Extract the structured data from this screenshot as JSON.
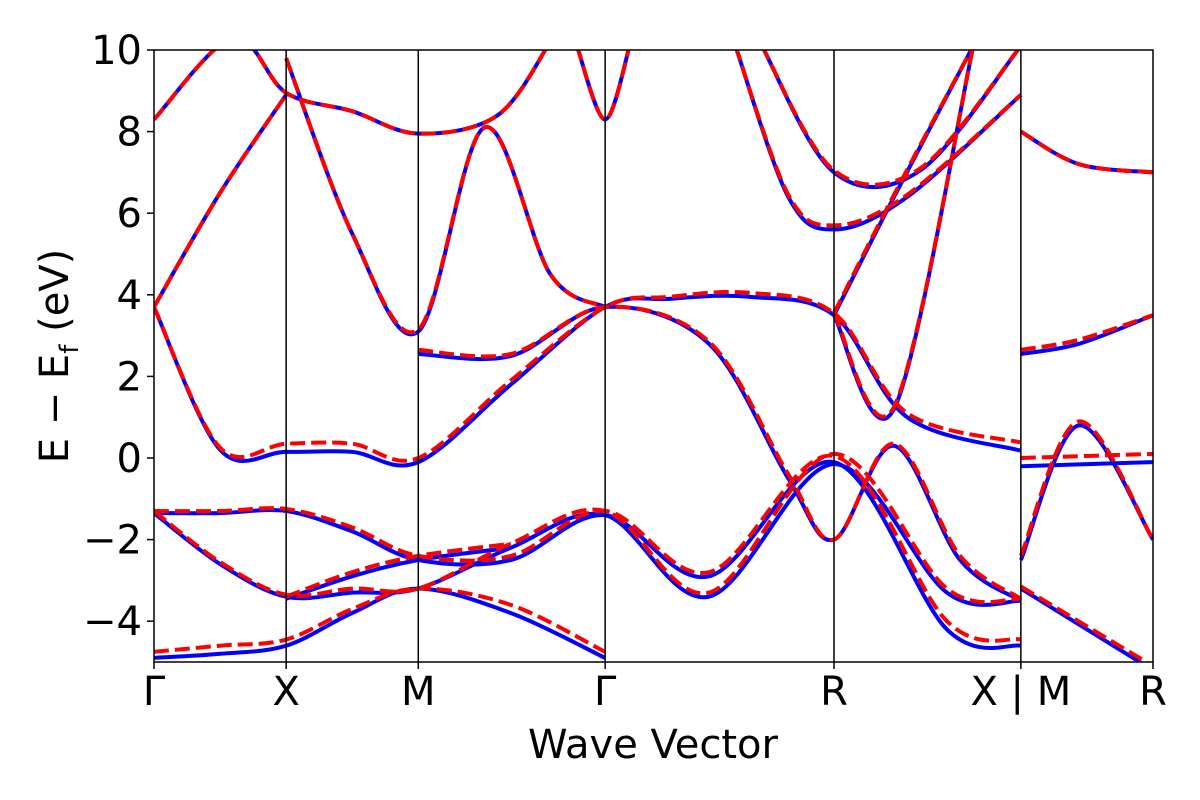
{
  "chart_data": {
    "type": "line",
    "title": "",
    "xlabel": "Wave Vector",
    "ylabel_parts": [
      "E − E",
      "f",
      " (eV)"
    ],
    "ylim": [
      -5,
      10
    ],
    "yticks": [
      {
        "value": -4,
        "label": "−4"
      },
      {
        "value": -2,
        "label": "−2"
      },
      {
        "value": 0,
        "label": "0"
      },
      {
        "value": 2,
        "label": "2"
      },
      {
        "value": 4,
        "label": "4"
      },
      {
        "value": 6,
        "label": "6"
      },
      {
        "value": 8,
        "label": "8"
      },
      {
        "value": 10,
        "label": "10"
      }
    ],
    "kpoints": [
      {
        "label": "Γ",
        "x": 0
      },
      {
        "label": "X",
        "x": 1
      },
      {
        "label": "M",
        "x": 2
      },
      {
        "label": "Γ",
        "x": 3.414
      },
      {
        "label": "R",
        "x": 5.146
      },
      {
        "label": "X | M",
        "x": 6.56
      },
      {
        "label": "R",
        "x": 7.56
      }
    ],
    "xlim": [
      0,
      7.56
    ],
    "grid": false,
    "legend": "none",
    "series": [
      {
        "style": "solid",
        "color": "#0000ff",
        "bands": [
          [
            [
              0,
              -4.9
            ],
            [
              0.5,
              -4.8
            ],
            [
              1,
              -4.6
            ],
            [
              1.5,
              -3.8
            ],
            [
              2,
              -3.2
            ],
            [
              2.7,
              -3.8
            ],
            [
              3.414,
              -4.9
            ]
          ],
          [
            [
              0,
              -1.35
            ],
            [
              0.5,
              -2.6
            ],
            [
              1,
              -3.4
            ],
            [
              1.5,
              -3.3
            ],
            [
              2,
              -3.2
            ],
            [
              2.7,
              -2.2
            ],
            [
              3.414,
              -1.4
            ],
            [
              4.2,
              -3.4
            ],
            [
              5.146,
              -0.15
            ],
            [
              6,
              -3.3
            ],
            [
              6.56,
              -3.5
            ]
          ],
          [
            [
              0,
              -1.35
            ],
            [
              0.5,
              -1.35
            ],
            [
              1,
              -1.3
            ],
            [
              1.5,
              -1.8
            ],
            [
              2,
              -2.5
            ],
            [
              2.7,
              -2.5
            ],
            [
              3.414,
              -1.4
            ],
            [
              4.2,
              -2.9
            ],
            [
              5.146,
              -0.1
            ],
            [
              6,
              -4.2
            ],
            [
              6.56,
              -4.6
            ]
          ],
          [
            [
              1,
              -3.45
            ],
            [
              1.5,
              -2.9
            ],
            [
              2,
              -2.5
            ],
            [
              2.7,
              -2.2
            ]
          ],
          [
            [
              0,
              3.7
            ],
            [
              0.5,
              0.2
            ],
            [
              1,
              0.15
            ],
            [
              1.5,
              0.15
            ],
            [
              2,
              -0.1
            ],
            [
              2.7,
              1.8
            ],
            [
              3.414,
              3.7
            ],
            [
              3.9,
              3.9
            ],
            [
              4.5,
              3.95
            ],
            [
              5.146,
              3.5
            ],
            [
              5.7,
              1.0
            ],
            [
              6.56,
              0.18
            ]
          ],
          [
            [
              0,
              3.7
            ],
            [
              0.5,
              6.5
            ],
            [
              1,
              8.9
            ]
          ],
          [
            [
              2,
              2.55
            ],
            [
              2.7,
              2.5
            ],
            [
              3.414,
              3.7
            ],
            [
              4.2,
              2.8
            ],
            [
              4.8,
              -0.5
            ],
            [
              5.146,
              -2.0
            ],
            [
              5.6,
              0.3
            ],
            [
              6.1,
              -2.5
            ],
            [
              6.56,
              -3.5
            ]
          ],
          [
            [
              1,
              9.8
            ],
            [
              1.5,
              5.5
            ],
            [
              2,
              3.1
            ],
            [
              2.5,
              8.1
            ],
            [
              3,
              4.5
            ],
            [
              3.414,
              3.7
            ]
          ],
          [
            [
              0,
              8.3
            ],
            [
              0.6,
              10.3
            ],
            [
              1,
              8.95
            ],
            [
              1.5,
              8.5
            ],
            [
              2,
              7.95
            ],
            [
              2.6,
              8.4
            ],
            [
              3.0,
              10.2
            ]
          ],
          [
            [
              3.2,
              10.1
            ],
            [
              3.414,
              8.3
            ],
            [
              3.6,
              10.1
            ]
          ],
          [
            [
              4.4,
              10.1
            ],
            [
              4.8,
              6.4
            ],
            [
              5.146,
              5.6
            ],
            [
              5.7,
              6.4
            ],
            [
              6.56,
              8.9
            ]
          ],
          [
            [
              4.6,
              10.1
            ],
            [
              5.146,
              7.0
            ],
            [
              5.8,
              7.05
            ],
            [
              6.56,
              10.1
            ]
          ],
          [
            [
              5.146,
              3.5
            ],
            [
              5.6,
              1.2
            ],
            [
              6.2,
              10.1
            ]
          ],
          [
            [
              5.146,
              3.5
            ],
            [
              5.6,
              6.4
            ],
            [
              6.2,
              10.1
            ]
          ],
          [
            [
              6.56,
              2.55
            ],
            [
              7.0,
              2.8
            ],
            [
              7.56,
              3.5
            ]
          ],
          [
            [
              6.56,
              -0.2
            ],
            [
              7.56,
              -0.1
            ]
          ],
          [
            [
              6.56,
              8.0
            ],
            [
              7.0,
              7.2
            ],
            [
              7.56,
              7.0
            ]
          ],
          [
            [
              6.56,
              -3.2
            ],
            [
              7.56,
              -5.2
            ]
          ],
          [
            [
              6.56,
              -2.5
            ],
            [
              7.0,
              0.8
            ],
            [
              7.56,
              -2.0
            ]
          ]
        ]
      },
      {
        "style": "dashed",
        "color": "#ff0000",
        "bands": [
          [
            [
              0,
              -4.75
            ],
            [
              0.5,
              -4.6
            ],
            [
              1,
              -4.45
            ],
            [
              1.5,
              -3.7
            ],
            [
              2,
              -3.2
            ],
            [
              2.7,
              -3.6
            ],
            [
              3.414,
              -4.75
            ]
          ],
          [
            [
              0,
              -1.3
            ],
            [
              0.5,
              -2.55
            ],
            [
              1,
              -3.35
            ],
            [
              1.5,
              -3.2
            ],
            [
              2,
              -3.2
            ],
            [
              2.7,
              -2.1
            ],
            [
              3.414,
              -1.3
            ],
            [
              4.2,
              -3.3
            ],
            [
              5.146,
              0.1
            ],
            [
              6,
              -3.2
            ],
            [
              6.56,
              -3.45
            ]
          ],
          [
            [
              0,
              -1.3
            ],
            [
              0.5,
              -1.3
            ],
            [
              1,
              -1.25
            ],
            [
              1.5,
              -1.7
            ],
            [
              2,
              -2.4
            ],
            [
              2.7,
              -2.4
            ],
            [
              3.414,
              -1.3
            ],
            [
              4.2,
              -2.8
            ],
            [
              5.146,
              0.05
            ],
            [
              6,
              -4.0
            ],
            [
              6.56,
              -4.45
            ]
          ],
          [
            [
              1,
              -3.4
            ],
            [
              1.5,
              -2.8
            ],
            [
              2,
              -2.4
            ],
            [
              2.7,
              -2.1
            ]
          ],
          [
            [
              0,
              3.7
            ],
            [
              0.5,
              0.25
            ],
            [
              1,
              0.35
            ],
            [
              1.5,
              0.35
            ],
            [
              2,
              0.0
            ],
            [
              2.7,
              1.9
            ],
            [
              3.414,
              3.7
            ],
            [
              3.9,
              3.95
            ],
            [
              4.5,
              4.05
            ],
            [
              5.146,
              3.55
            ],
            [
              5.7,
              1.1
            ],
            [
              6.56,
              0.38
            ]
          ],
          [
            [
              0,
              3.7
            ],
            [
              0.5,
              6.5
            ],
            [
              1,
              8.9
            ]
          ],
          [
            [
              2,
              2.65
            ],
            [
              2.7,
              2.55
            ],
            [
              3.414,
              3.7
            ],
            [
              4.2,
              2.85
            ],
            [
              4.8,
              -0.4
            ],
            [
              5.146,
              -2.0
            ],
            [
              5.6,
              0.35
            ],
            [
              6.1,
              -2.4
            ],
            [
              6.56,
              -3.45
            ]
          ],
          [
            [
              1,
              9.8
            ],
            [
              1.5,
              5.5
            ],
            [
              2,
              3.15
            ],
            [
              2.5,
              8.1
            ],
            [
              3,
              4.5
            ],
            [
              3.414,
              3.7
            ]
          ],
          [
            [
              0,
              8.3
            ],
            [
              0.6,
              10.3
            ],
            [
              1,
              8.95
            ],
            [
              1.5,
              8.5
            ],
            [
              2,
              7.95
            ],
            [
              2.6,
              8.4
            ],
            [
              3.0,
              10.2
            ]
          ],
          [
            [
              3.2,
              10.1
            ],
            [
              3.414,
              8.3
            ],
            [
              3.6,
              10.1
            ]
          ],
          [
            [
              4.4,
              10.1
            ],
            [
              4.8,
              6.45
            ],
            [
              5.146,
              5.7
            ],
            [
              5.7,
              6.45
            ],
            [
              6.56,
              8.9
            ]
          ],
          [
            [
              4.6,
              10.1
            ],
            [
              5.146,
              7.05
            ],
            [
              5.8,
              7.1
            ],
            [
              6.56,
              10.1
            ]
          ],
          [
            [
              5.146,
              3.55
            ],
            [
              5.6,
              1.25
            ],
            [
              6.2,
              10.1
            ]
          ],
          [
            [
              5.146,
              3.55
            ],
            [
              5.6,
              6.45
            ],
            [
              6.2,
              10.1
            ]
          ],
          [
            [
              6.56,
              2.65
            ],
            [
              7.0,
              2.9
            ],
            [
              7.56,
              3.5
            ]
          ],
          [
            [
              6.56,
              0.0
            ],
            [
              7.56,
              0.1
            ]
          ],
          [
            [
              6.56,
              8.0
            ],
            [
              7.0,
              7.2
            ],
            [
              7.56,
              7.0
            ]
          ],
          [
            [
              6.56,
              -3.15
            ],
            [
              7.56,
              -5.1
            ]
          ],
          [
            [
              6.56,
              -2.4
            ],
            [
              7.0,
              0.9
            ],
            [
              7.56,
              -2.0
            ]
          ]
        ]
      }
    ]
  }
}
